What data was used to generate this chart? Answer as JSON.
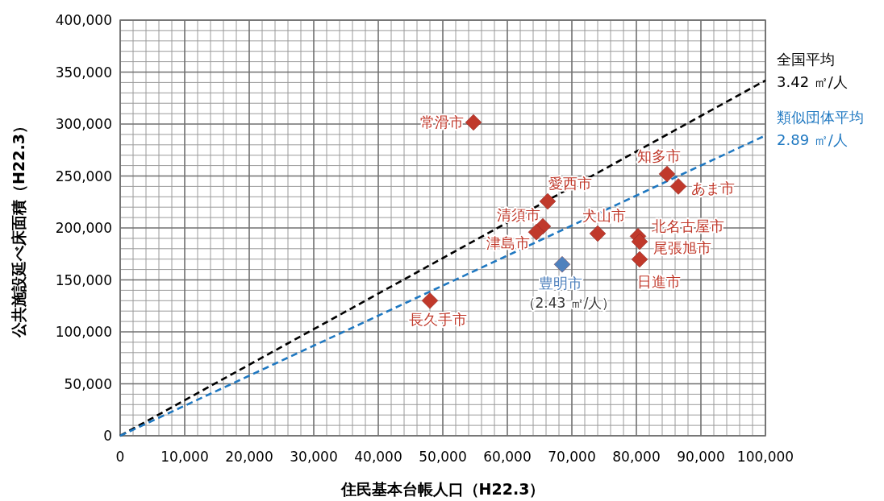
{
  "chart_data": {
    "type": "scatter",
    "xlabel": "住民基本台帳人口（H22.3）",
    "ylabel": "公共施設延べ床面積（H22.3）",
    "xlim": [
      0,
      100000
    ],
    "ylim": [
      0,
      400000
    ],
    "xticks": [
      {
        "value": 0,
        "label": "0"
      },
      {
        "value": 10000,
        "label": "10,000"
      },
      {
        "value": 20000,
        "label": "20,000"
      },
      {
        "value": 30000,
        "label": "30,000"
      },
      {
        "value": 40000,
        "label": "40,000"
      },
      {
        "value": 50000,
        "label": "50,000"
      },
      {
        "value": 60000,
        "label": "60,000"
      },
      {
        "value": 70000,
        "label": "70,000"
      },
      {
        "value": 80000,
        "label": "80,000"
      },
      {
        "value": 90000,
        "label": "90,000"
      },
      {
        "value": 100000,
        "label": "100,000"
      }
    ],
    "yticks": [
      {
        "value": 0,
        "label": "0"
      },
      {
        "value": 50000,
        "label": "50,000"
      },
      {
        "value": 100000,
        "label": "100,000"
      },
      {
        "value": 150000,
        "label": "150,000"
      },
      {
        "value": 200000,
        "label": "200,000"
      },
      {
        "value": 250000,
        "label": "250,000"
      },
      {
        "value": 300000,
        "label": "300,000"
      },
      {
        "value": 350000,
        "label": "350,000"
      },
      {
        "value": 400000,
        "label": "400,000"
      }
    ],
    "grid": true,
    "marker": "diamond",
    "series": [
      {
        "type": "line",
        "name": "全国平均\n3.42 ㎡/人",
        "color": "#000000",
        "line_style": "dashed",
        "marker": "none",
        "x": [
          0,
          100000
        ],
        "values": [
          0,
          342000
        ]
      },
      {
        "type": "line",
        "name": "類似団体平均\n2.89 ㎡/人",
        "color": "#1f78c1",
        "line_style": "dashed",
        "marker": "none",
        "x": [
          0,
          100000
        ],
        "values": [
          0,
          289000
        ]
      },
      {
        "name": "常滑市",
        "color": "#c0392b",
        "x": [
          54750
        ],
        "values": [
          301600
        ]
      },
      {
        "name": "長久手市",
        "color": "#c0392b",
        "x": [
          48000
        ],
        "values": [
          130000
        ]
      },
      {
        "name": "豊明市",
        "color": "#4f81bd",
        "x": [
          68500
        ],
        "values": [
          165000
        ]
      },
      {
        "name": "愛西市",
        "color": "#c0392b",
        "x": [
          66250
        ],
        "values": [
          225600
        ]
      },
      {
        "name": "清須市",
        "color": "#c0392b",
        "x": [
          65500
        ],
        "values": [
          201600
        ]
      },
      {
        "name": "津島市",
        "color": "#c0392b",
        "x": [
          64500
        ],
        "values": [
          196000
        ]
      },
      {
        "name": "犬山市",
        "color": "#c0392b",
        "x": [
          74000
        ],
        "values": [
          194600
        ]
      },
      {
        "name": "知多市",
        "color": "#c0392b",
        "x": [
          84750
        ],
        "values": [
          252000
        ]
      },
      {
        "name": "あま市",
        "color": "#c0392b",
        "x": [
          86500
        ],
        "values": [
          240000
        ]
      },
      {
        "name": "北名古屋市",
        "color": "#c0392b",
        "x": [
          80250
        ],
        "values": [
          192000
        ]
      },
      {
        "name": "尾張旭市",
        "color": "#c0392b",
        "x": [
          80500
        ],
        "values": [
          186800
        ]
      },
      {
        "name": "日進市",
        "color": "#c0392b",
        "x": [
          80500
        ],
        "values": [
          169800
        ]
      }
    ],
    "annotations": [
      {
        "text": "（2.43 ㎡/人）",
        "x": 68500,
        "y": 165000
      }
    ]
  }
}
